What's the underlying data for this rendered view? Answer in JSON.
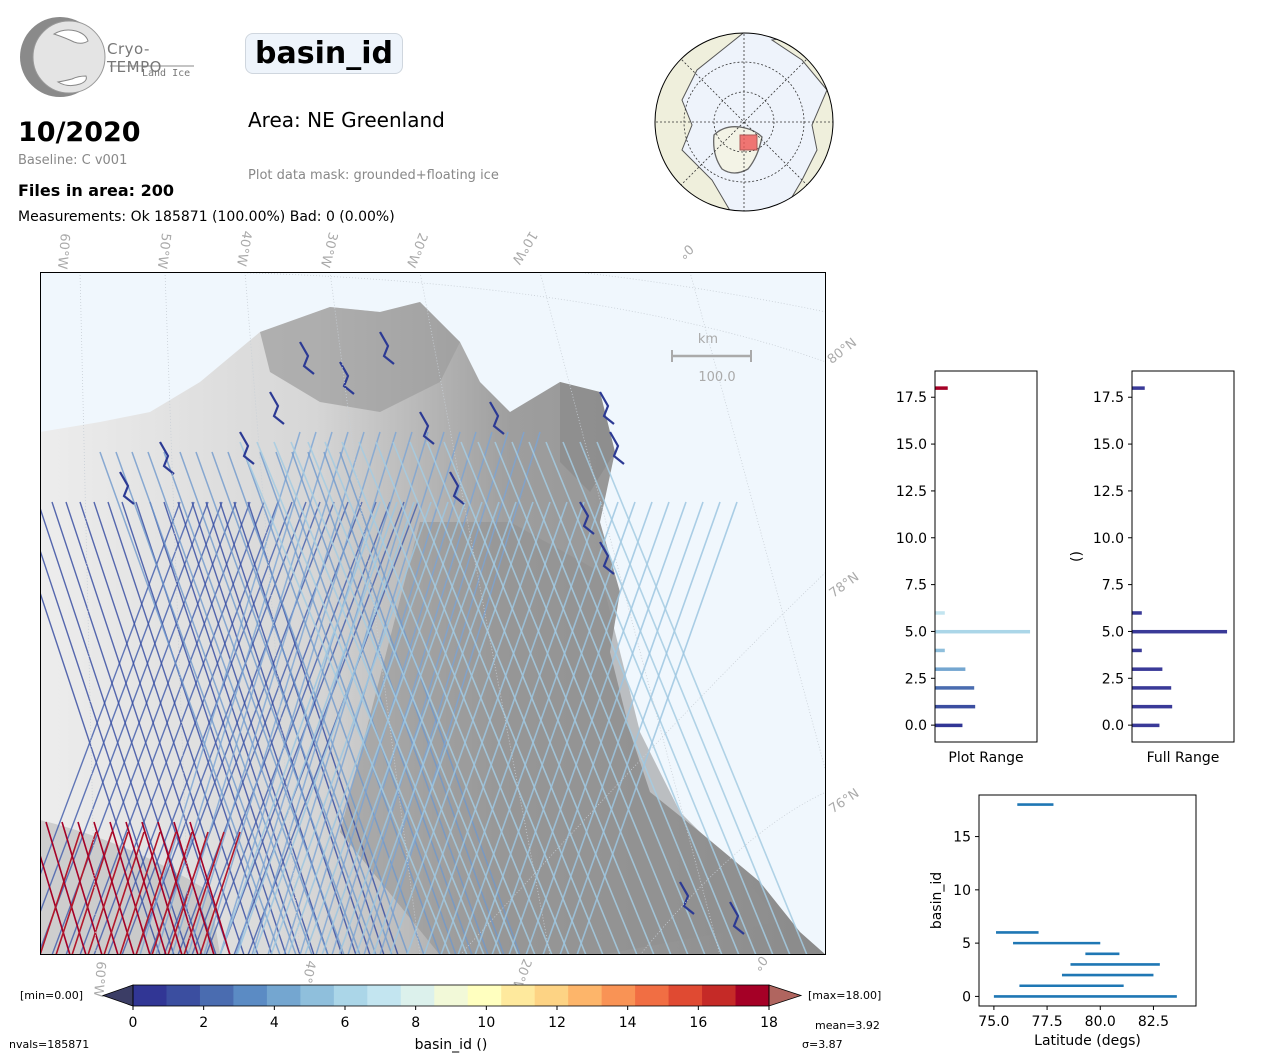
{
  "logo": {
    "name": "Cryo-TEMPO",
    "subtitle": "Land Ice"
  },
  "header": {
    "date": "10/2020",
    "baseline": "Baseline: C v001",
    "files": "Files in area: 200",
    "measurements": "Measurements: Ok 185871 (100.00%) Bad: 0 (0.00%)",
    "title": "basin_id",
    "area": "Area: NE Greenland",
    "mask": "Plot data mask: grounded+floating ice"
  },
  "map": {
    "lon_labels": [
      "60°W",
      "50°W",
      "40°W",
      "30°W",
      "20°W",
      "10°W",
      "0°"
    ],
    "bottom_lon_labels": [
      "60°W",
      "40°W",
      "20°W",
      "0°"
    ],
    "lat_labels": [
      "80°N",
      "78°N",
      "76°N"
    ],
    "scale_unit": "km",
    "scale_value": "100.0"
  },
  "colorbar": {
    "min_label": "[min=0.00]",
    "max_label": "[max=18.00]",
    "ticks": [
      "0",
      "2",
      "4",
      "6",
      "8",
      "10",
      "12",
      "14",
      "16",
      "18"
    ],
    "label": "basin_id ()",
    "colors": [
      "#313695",
      "#3b4ea0",
      "#4a6cb0",
      "#5b8bc4",
      "#74a6d0",
      "#8fbfdc",
      "#abd6e8",
      "#c3e5f0",
      "#dcf1ec",
      "#f2f9d8",
      "#ffffbf",
      "#fee99d",
      "#fdd384",
      "#fdb56a",
      "#f99355",
      "#f16e43",
      "#e04a32",
      "#c52a27",
      "#a50026"
    ],
    "under_color": "#3b3d65",
    "over_color": "#b0655f"
  },
  "stats": {
    "nvals": "nvals=185871",
    "mean": "mean=3.92",
    "sigma": "σ=3.87"
  },
  "chart_data": [
    {
      "type": "bar",
      "orientation": "horizontal",
      "xlabel": "Plot Range",
      "ylim": [
        -0.9,
        18.9
      ],
      "yticks": [
        "0.0",
        "2.5",
        "5.0",
        "7.5",
        "10.0",
        "12.5",
        "15.0",
        "17.5"
      ],
      "bins": [
        {
          "y": 0,
          "value": 0.28,
          "color": "#313695"
        },
        {
          "y": 1,
          "value": 0.41,
          "color": "#3b4ea0"
        },
        {
          "y": 2,
          "value": 0.4,
          "color": "#4a6cb0"
        },
        {
          "y": 3,
          "value": 0.31,
          "color": "#74a6d0"
        },
        {
          "y": 4,
          "value": 0.1,
          "color": "#8fbfdc"
        },
        {
          "y": 5,
          "value": 0.97,
          "color": "#abd6e8"
        },
        {
          "y": 6,
          "value": 0.1,
          "color": "#c3e5f0"
        },
        {
          "y": 18,
          "value": 0.13,
          "color": "#a50026"
        }
      ]
    },
    {
      "type": "bar",
      "orientation": "horizontal",
      "xlabel": "Full Range",
      "ylabel": "()",
      "ylim": [
        -0.9,
        18.9
      ],
      "yticks": [
        "0.0",
        "2.5",
        "5.0",
        "7.5",
        "10.0",
        "12.5",
        "15.0",
        "17.5"
      ],
      "bins": [
        {
          "y": 0,
          "value": 0.28
        },
        {
          "y": 1,
          "value": 0.41
        },
        {
          "y": 2,
          "value": 0.4
        },
        {
          "y": 3,
          "value": 0.31
        },
        {
          "y": 4,
          "value": 0.1
        },
        {
          "y": 5,
          "value": 0.97
        },
        {
          "y": 6,
          "value": 0.1
        },
        {
          "y": 18,
          "value": 0.13
        }
      ],
      "color": "#3a3a98"
    },
    {
      "type": "scatter",
      "xlabel": "Latitude (degs)",
      "ylabel": "basin_id",
      "xlim": [
        74.3,
        84.5
      ],
      "ylim": [
        -0.9,
        18.9
      ],
      "xticks": [
        "75.0",
        "77.5",
        "80.0",
        "82.5"
      ],
      "yticks": [
        "0",
        "5",
        "10",
        "15"
      ],
      "segments": [
        {
          "y": 0,
          "x": [
            75.0,
            83.6
          ]
        },
        {
          "y": 1,
          "x": [
            76.2,
            81.1
          ]
        },
        {
          "y": 2,
          "x": [
            78.2,
            82.5
          ]
        },
        {
          "y": 3,
          "x": [
            78.6,
            82.8
          ]
        },
        {
          "y": 4,
          "x": [
            79.3,
            80.9
          ]
        },
        {
          "y": 5,
          "x": [
            75.9,
            80.0
          ]
        },
        {
          "y": 6,
          "x": [
            75.1,
            77.1
          ]
        },
        {
          "y": 18,
          "x": [
            76.1,
            77.8
          ]
        }
      ],
      "color": "#1f77b4"
    }
  ]
}
